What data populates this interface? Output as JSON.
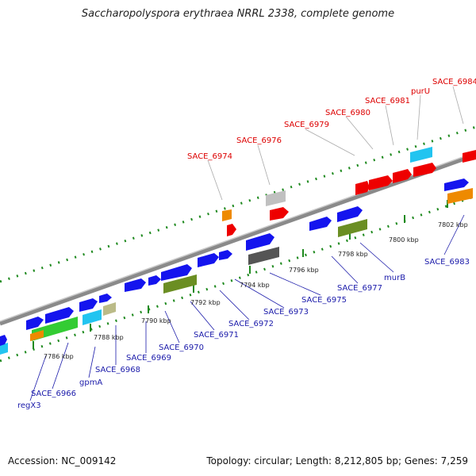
{
  "title": "Saccharopolyspora erythraea NRRL 2338, complete genome",
  "footer": {
    "accession": "Accession: NC_009142",
    "summary": "Topology: circular; Length: 8,212,805 bp; Genes: 7,259"
  },
  "colors": {
    "backbone": "#7a7a7a",
    "tick": "#1f8a1f",
    "label_forward": "#dd0000",
    "label_reverse": "#1a1aaa",
    "scale_text": "#222222",
    "leader": "#aaaaaa"
  },
  "scale_labels": [
    "7786 kbp",
    "7788 kbp",
    "7790 kbp",
    "7792 kbp",
    "7794 kbp",
    "7796 kbp",
    "7798 kbp",
    "7800 kbp",
    "7802 kbp"
  ],
  "gene_labels_forward": [
    "SACE_6974",
    "SACE_6976",
    "SACE_6979",
    "SACE_6980",
    "SACE_6981",
    "purU",
    "SACE_6984"
  ],
  "gene_labels_reverse": [
    "regX3",
    "SACE_6966",
    "gpmA",
    "SACE_6968",
    "SACE_6969",
    "SACE_6970",
    "SACE_6971",
    "SACE_6972",
    "SACE_6973",
    "SACE_6975",
    "SACE_6977",
    "murB",
    "SACE_6983"
  ]
}
